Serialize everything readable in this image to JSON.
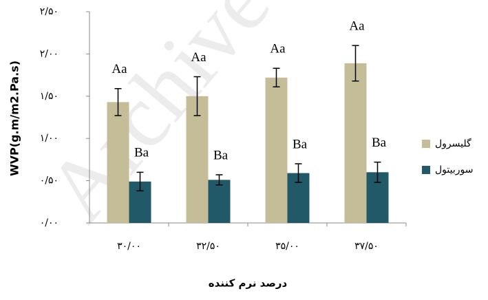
{
  "chart_data": {
    "type": "bar",
    "watermark": "Archive",
    "ylabel": "WVP(g.m/m2.Pa.s)",
    "xlabel": "درصد نرم کننده",
    "categories": [
      "۳۰/۰۰",
      "۳۲/۵۰",
      "۳۵/۰۰",
      "۳۷/۵۰"
    ],
    "series": [
      {
        "name": "گلیسرول",
        "color": "#c4bd97",
        "values": [
          1.43,
          1.5,
          1.72,
          1.89
        ],
        "errors": [
          0.16,
          0.23,
          0.11,
          0.21
        ],
        "annotations": [
          "Aa",
          "Aa",
          "Aa",
          "Aa"
        ]
      },
      {
        "name": "سوربیتول",
        "color": "#215968",
        "values": [
          0.49,
          0.51,
          0.59,
          0.6
        ],
        "errors": [
          0.11,
          0.06,
          0.11,
          0.12
        ],
        "annotations": [
          "Ba",
          "Ba",
          "Ba",
          "Ba"
        ]
      }
    ],
    "ylim": [
      0,
      2.5
    ],
    "yticks": [
      {
        "value": 0,
        "label": "۰/۰۰"
      },
      {
        "value": 0.5,
        "label": "۰/۵۰"
      },
      {
        "value": 1,
        "label": "۱/۰۰"
      },
      {
        "value": 1.5,
        "label": "۱/۵۰"
      },
      {
        "value": 2,
        "label": "۲/۰۰"
      },
      {
        "value": 2.5,
        "label": "۲/۵۰"
      }
    ],
    "legend": "right"
  }
}
